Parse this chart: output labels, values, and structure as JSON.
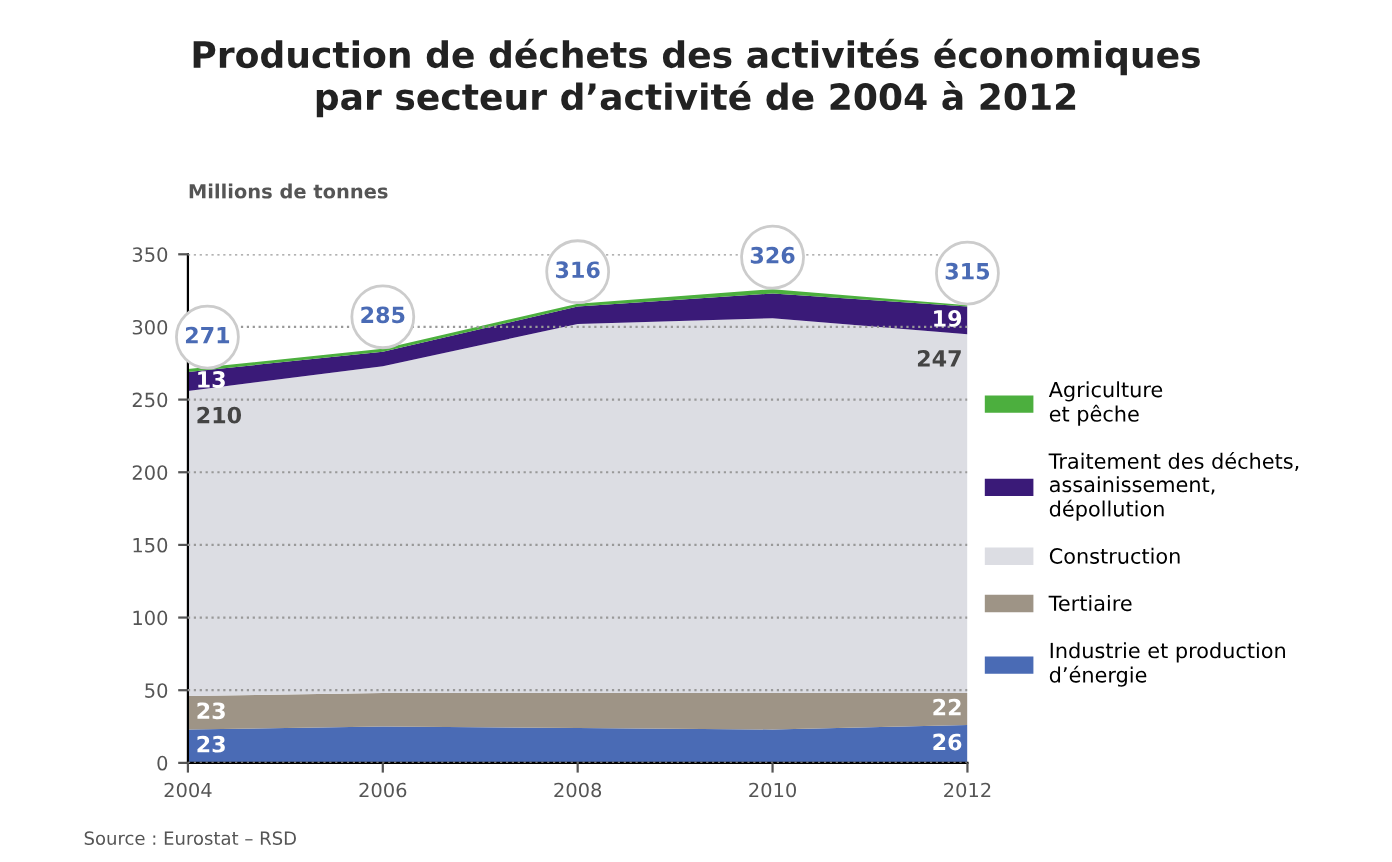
{
  "chart_data": {
    "type": "area",
    "stacked": true,
    "title": "Production de déchets des activités économiques\npar secteur d’activité de 2004 à 2012",
    "ylabel": "Millions de tonnes",
    "x": [
      2004,
      2006,
      2008,
      2010,
      2012
    ],
    "series": [
      {
        "name": "Industrie et production\nd’énergie",
        "color": "#4a6bb5",
        "values": [
          23,
          25,
          24,
          23,
          26
        ],
        "value_labels": [
          "23",
          null,
          null,
          null,
          "26"
        ]
      },
      {
        "name": "Tertiaire",
        "color": "#9e9486",
        "values": [
          23,
          23,
          24,
          25,
          22
        ],
        "value_labels": [
          "23",
          null,
          null,
          null,
          "22"
        ]
      },
      {
        "name": "Construction",
        "color": "#dcdde3",
        "values": [
          210,
          225,
          254,
          258,
          247
        ],
        "value_labels": [
          "210",
          null,
          null,
          null,
          "247"
        ]
      },
      {
        "name": "Traitement des déchets,\nassainissement,\ndépollution",
        "color": "#3a1a78",
        "values": [
          13,
          10,
          12,
          17,
          19
        ],
        "value_labels": [
          "13",
          null,
          null,
          null,
          "19"
        ]
      },
      {
        "name": "Agriculture\net pêche",
        "color": "#4caf3e",
        "values": [
          2,
          2,
          2,
          3,
          1
        ]
      }
    ],
    "totals": [
      "271",
      "285",
      "316",
      "326",
      "315"
    ],
    "xlim": [
      2004,
      2012
    ],
    "xticks": [
      2004,
      2006,
      2008,
      2010,
      2012
    ],
    "ylim": [
      0,
      350
    ],
    "yticks": [
      0,
      50,
      100,
      150,
      200,
      250,
      300,
      350
    ],
    "grid": "y",
    "legend": "right",
    "annotations": [
      "Source : Eurostat – RSD"
    ]
  }
}
